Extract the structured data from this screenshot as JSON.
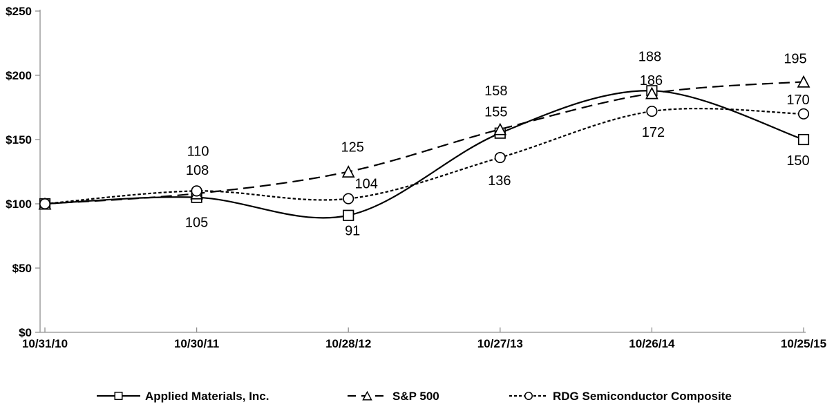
{
  "chart_data": {
    "type": "line",
    "title": "",
    "x_categories": [
      "10/31/10",
      "10/30/11",
      "10/28/12",
      "10/27/13",
      "10/26/14",
      "10/25/15"
    ],
    "y_axis": {
      "min": 0,
      "max": 250,
      "step": 50,
      "tick_labels": [
        "$0",
        "$50",
        "$100",
        "$150",
        "$200",
        "$250"
      ]
    },
    "grid": "off",
    "legend_position": "bottom",
    "background_color": "#ffffff",
    "axis_color": "#8f8f8f",
    "text_color": "#000000",
    "line_color": "#000000",
    "line_smoothing": "on",
    "series": [
      {
        "name": "Applied Materials, Inc.",
        "values": [
          100,
          105,
          91,
          155,
          188,
          150
        ],
        "marker": "square",
        "line_style": "solid"
      },
      {
        "name": "S&P 500",
        "values": [
          100,
          108,
          125,
          158,
          186,
          195
        ],
        "marker": "triangle",
        "line_style": "long-dash"
      },
      {
        "name": "RDG Semiconductor Composite",
        "values": [
          100,
          110,
          104,
          136,
          172,
          170
        ],
        "marker": "circle",
        "line_style": "short-dash"
      }
    ],
    "point_label_offsets": [
      [
        null,
        [
          0,
          36
        ],
        [
          6,
          22
        ],
        [
          -6,
          -31
        ],
        [
          -3,
          -50
        ],
        [
          -8,
          30
        ]
      ],
      [
        null,
        [
          1,
          -34
        ],
        [
          6,
          -36
        ],
        [
          -6,
          -56
        ],
        [
          -1,
          -19
        ],
        [
          -12,
          -34
        ]
      ],
      [
        null,
        [
          2,
          -58
        ],
        [
          26,
          -22
        ],
        [
          -1,
          33
        ],
        [
          2,
          30
        ],
        [
          -8,
          -21
        ]
      ]
    ]
  }
}
